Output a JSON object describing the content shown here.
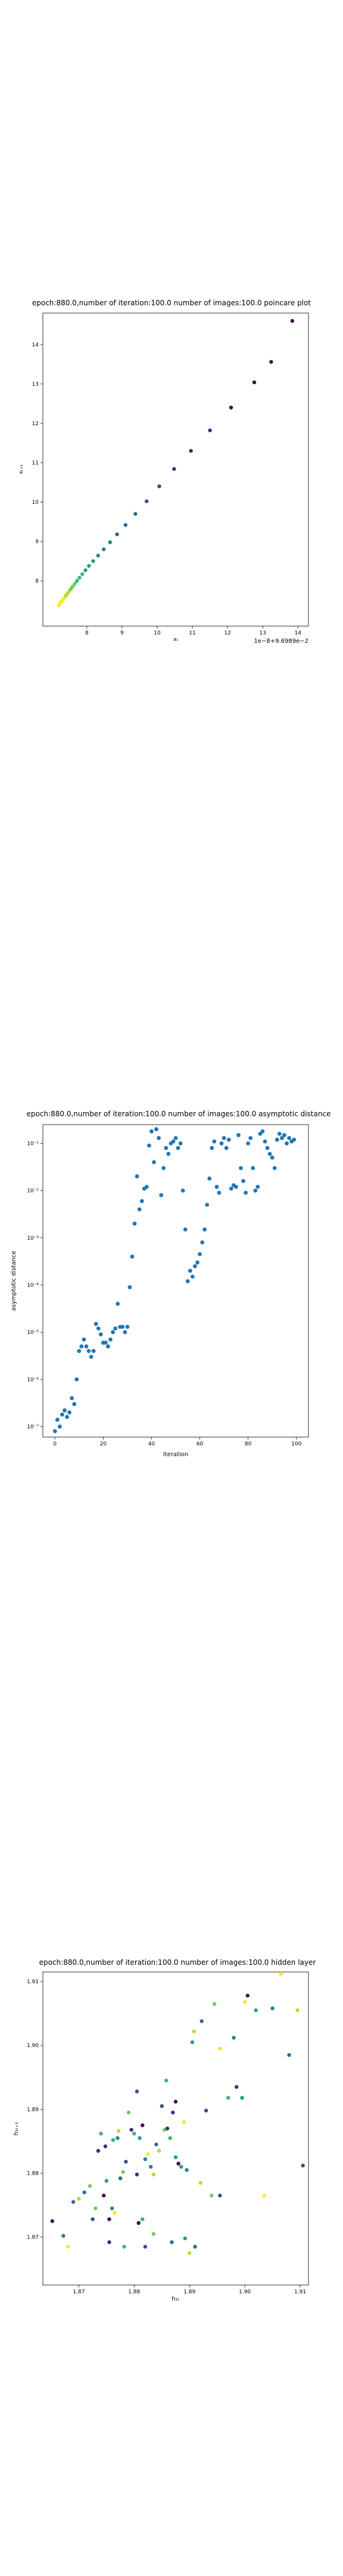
{
  "chart_data": [
    {
      "type": "scatter",
      "title": "epoch:880.0,number of iteration:100.0 number of images:100.0 poincare plot",
      "xlabel": "xₜ",
      "ylabel": "xₜ₊₁",
      "offset_text": "1e−8+9.6989e−2",
      "xlim": [
        6.75,
        14.3
      ],
      "ylim": [
        6.85,
        14.8
      ],
      "xticks": [
        8,
        9,
        10,
        11,
        12,
        13,
        14
      ],
      "yticks": [
        8,
        9,
        10,
        11,
        12,
        13,
        14
      ],
      "colormap": "viridis",
      "points": [
        [
          7.2,
          7.38
        ],
        [
          7.25,
          7.45
        ],
        [
          7.3,
          7.5
        ],
        [
          7.35,
          7.56
        ],
        [
          7.4,
          7.62
        ],
        [
          7.45,
          7.68
        ],
        [
          7.5,
          7.74
        ],
        [
          7.55,
          7.8
        ],
        [
          7.6,
          7.86
        ],
        [
          7.66,
          7.93
        ],
        [
          7.72,
          8.0
        ],
        [
          7.79,
          8.08
        ],
        [
          7.87,
          8.17
        ],
        [
          7.96,
          8.27
        ],
        [
          8.06,
          8.38
        ],
        [
          8.18,
          8.5
        ],
        [
          8.32,
          8.64
        ],
        [
          8.48,
          8.8
        ],
        [
          8.66,
          8.98
        ],
        [
          8.86,
          9.18
        ],
        [
          9.1,
          9.42
        ],
        [
          9.38,
          9.7
        ],
        [
          9.7,
          10.02
        ],
        [
          10.06,
          10.4
        ],
        [
          10.48,
          10.84
        ],
        [
          10.96,
          11.3
        ],
        [
          11.5,
          11.82
        ],
        [
          12.1,
          12.4
        ],
        [
          12.76,
          13.04
        ],
        [
          13.24,
          13.56
        ],
        [
          13.84,
          14.6
        ]
      ]
    },
    {
      "type": "scatter",
      "title": "epoch:880.0,number of iteration:100.0  number of images:100.0 asymptotic distance",
      "xlabel": "iteration",
      "ylabel": "asymptotic distance",
      "yscale": "log",
      "xlim": [
        -5,
        105
      ],
      "ylim": [
        6e-08,
        0.25
      ],
      "xticks": [
        0,
        20,
        40,
        60,
        80,
        100
      ],
      "yticks": [
        1e-07,
        1e-06,
        1e-05,
        0.0001,
        0.001,
        0.01,
        0.1
      ],
      "ytick_labels": [
        "10⁻⁷",
        "10⁻⁶",
        "10⁻⁵",
        "10⁻⁴",
        "10⁻³",
        "10⁻²",
        "10⁻¹"
      ],
      "color": "#1f77b4",
      "x": [
        0,
        1,
        2,
        3,
        4,
        5,
        6,
        7,
        8,
        9,
        10,
        11,
        12,
        13,
        14,
        15,
        16,
        17,
        18,
        19,
        20,
        21,
        22,
        23,
        24,
        25,
        26,
        27,
        28,
        29,
        30,
        31,
        32,
        33,
        34,
        35,
        36,
        37,
        38,
        39,
        40,
        41,
        42,
        43,
        44,
        45,
        46,
        47,
        48,
        49,
        50,
        51,
        52,
        53,
        54,
        55,
        56,
        57,
        58,
        59,
        60,
        61,
        62,
        63,
        64,
        65,
        66,
        67,
        68,
        69,
        70,
        71,
        72,
        73,
        74,
        75,
        76,
        77,
        78,
        79,
        80,
        81,
        82,
        83,
        84,
        85,
        86,
        87,
        88,
        89,
        90,
        91,
        92,
        93,
        94,
        95,
        96,
        97,
        98,
        99
      ],
      "y": [
        8e-08,
        1.4e-07,
        1e-07,
        1.8e-07,
        2.2e-07,
        1.6e-07,
        2e-07,
        4e-07,
        3e-07,
        1e-06,
        4e-06,
        5e-06,
        7e-06,
        5e-06,
        4e-06,
        3e-06,
        4e-06,
        1.5e-05,
        1.2e-05,
        9e-06,
        6e-06,
        6e-06,
        5e-06,
        7e-06,
        1e-05,
        1.2e-05,
        4e-05,
        1.3e-05,
        1.3e-05,
        1e-05,
        1.3e-05,
        9e-05,
        0.0004,
        0.002,
        0.02,
        0.004,
        0.006,
        0.011,
        0.012,
        0.09,
        0.18,
        0.04,
        0.2,
        0.13,
        0.008,
        0.03,
        0.08,
        0.06,
        0.1,
        0.11,
        0.13,
        0.08,
        0.1,
        0.01,
        0.0015,
        0.00012,
        0.0002,
        0.00015,
        0.00025,
        0.0003,
        0.00045,
        0.0008,
        0.0015,
        0.005,
        0.018,
        0.08,
        0.11,
        0.012,
        0.009,
        0.1,
        0.13,
        0.08,
        0.12,
        0.011,
        0.013,
        0.012,
        0.15,
        0.03,
        0.016,
        0.009,
        0.1,
        0.13,
        0.03,
        0.01,
        0.012,
        0.16,
        0.18,
        0.11,
        0.08,
        0.06,
        0.05,
        0.03,
        0.12,
        0.16,
        0.13,
        0.15,
        0.1,
        0.13,
        0.11,
        0.12
      ]
    },
    {
      "type": "scatter",
      "title": "epoch:880.0,number of iteration:100.0  number of images:100.0 hidden layer",
      "xlabel": "h₁ₜ",
      "ylabel": "h₁ₜ₊₁",
      "xlim": [
        1.8635,
        1.9115
      ],
      "ylim": [
        1.8625,
        1.9115
      ],
      "xticks": [
        1.87,
        1.88,
        1.89,
        1.9,
        1.91
      ],
      "yticks": [
        1.87,
        1.88,
        1.89,
        1.9,
        1.91
      ],
      "xtick_labels": [
        "1.87",
        "1.88",
        "1.89",
        "1.90",
        "1.91"
      ],
      "ytick_labels": [
        "1.87",
        "1.88",
        "1.89",
        "1.90",
        "1.91"
      ],
      "colormap": "viridis",
      "points": [
        [
          1.8652,
          1.8725
        ],
        [
          1.8672,
          1.8702
        ],
        [
          1.868,
          1.8685
        ],
        [
          1.869,
          1.8755
        ],
        [
          1.87,
          1.876
        ],
        [
          1.871,
          1.877
        ],
        [
          1.872,
          1.878
        ],
        [
          1.8725,
          1.8728
        ],
        [
          1.873,
          1.8745
        ],
        [
          1.8735,
          1.8835
        ],
        [
          1.874,
          1.8862
        ],
        [
          1.8745,
          1.8765
        ],
        [
          1.875,
          1.8788
        ],
        [
          1.8755,
          1.8728
        ],
        [
          1.876,
          1.8745
        ],
        [
          1.8765,
          1.8738
        ],
        [
          1.877,
          1.8855
        ],
        [
          1.8772,
          1.8866
        ],
        [
          1.8775,
          1.8792
        ],
        [
          1.878,
          1.8802
        ],
        [
          1.8785,
          1.8818
        ],
        [
          1.879,
          1.8895
        ],
        [
          1.8795,
          1.8868
        ],
        [
          1.88,
          1.8862
        ],
        [
          1.8805,
          1.8798
        ],
        [
          1.881,
          1.8855
        ],
        [
          1.8815,
          1.8875
        ],
        [
          1.882,
          1.8822
        ],
        [
          1.8825,
          1.883
        ],
        [
          1.883,
          1.881
        ],
        [
          1.8835,
          1.8798
        ],
        [
          1.884,
          1.8845
        ],
        [
          1.8845,
          1.8835
        ],
        [
          1.885,
          1.8905
        ],
        [
          1.8855,
          1.8868
        ],
        [
          1.886,
          1.887
        ],
        [
          1.8865,
          1.8855
        ],
        [
          1.887,
          1.8895
        ],
        [
          1.8875,
          1.8825
        ],
        [
          1.888,
          1.8815
        ],
        [
          1.8885,
          1.881
        ],
        [
          1.889,
          1.888
        ],
        [
          1.8895,
          1.8805
        ],
        [
          1.89,
          1.8675
        ],
        [
          1.891,
          1.8685
        ],
        [
          1.892,
          1.8785
        ],
        [
          1.893,
          1.8898
        ],
        [
          1.894,
          1.8765
        ],
        [
          1.8955,
          1.8765
        ],
        [
          1.897,
          1.8918
        ],
        [
          1.8985,
          1.8935
        ],
        [
          1.8995,
          1.8918
        ],
        [
          1.9005,
          1.9078
        ],
        [
          1.902,
          1.9055
        ],
        [
          1.9035,
          1.8765
        ],
        [
          1.905,
          1.9058
        ],
        [
          1.9065,
          1.9112
        ],
        [
          1.908,
          1.8985
        ],
        [
          1.9095,
          1.9055
        ],
        [
          1.9105,
          1.8812
        ],
        [
          1.8835,
          1.8705
        ],
        [
          1.882,
          1.8685
        ],
        [
          1.8815,
          1.8728
        ],
        [
          1.8755,
          1.8692
        ],
        [
          1.8782,
          1.8685
        ],
        [
          1.8875,
          1.8912
        ],
        [
          1.8905,
          1.9005
        ],
        [
          1.8955,
          1.8995
        ],
        [
          1.898,
          1.9012
        ],
        [
          1.9,
          1.9068
        ],
        [
          1.8868,
          1.8692
        ],
        [
          1.8908,
          1.9022
        ],
        [
          1.8922,
          1.9038
        ],
        [
          1.8945,
          1.9065
        ],
        [
          1.8805,
          1.8928
        ],
        [
          1.8858,
          1.8945
        ],
        [
          1.8748,
          1.8842
        ],
        [
          1.8762,
          1.8852
        ],
        [
          1.8808,
          1.8722
        ],
        [
          1.8892,
          1.8698
        ]
      ]
    }
  ]
}
